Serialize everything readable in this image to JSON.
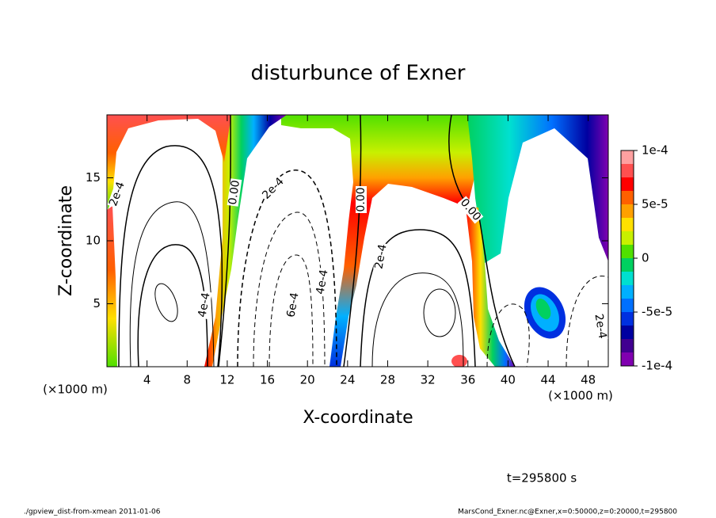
{
  "chart_data": {
    "type": "contour",
    "title": "disturbunce of Exner",
    "x_label": "X-coordinate",
    "y_label": "Z-coordinate",
    "x_unit": "(×1000 m)",
    "y_unit": "(×1000 m)",
    "xlim": [
      0,
      50
    ],
    "xticks": [
      4,
      8,
      12,
      16,
      20,
      24,
      28,
      32,
      36,
      40,
      44,
      48
    ],
    "ylim": [
      0,
      20
    ],
    "yticks": [
      5,
      10,
      15
    ],
    "colorbar": {
      "lim": [
        -0.0001,
        0.0001
      ],
      "ticks": [
        {
          "value": 0.0001,
          "label": "1e-4"
        },
        {
          "value": 5e-05,
          "label": "5e-5"
        },
        0,
        {
          "value": -5e-05,
          "label": "-5e-5"
        },
        {
          "value": -0.0001,
          "label": "-1e-4"
        }
      ],
      "colors": [
        "#ffa0a0",
        "#ff5050",
        "#ff0000",
        "#ff6000",
        "#ffa000",
        "#ffe000",
        "#c8f000",
        "#50e000",
        "#00d060",
        "#00e0d0",
        "#00b0ff",
        "#0070ff",
        "#0030e0",
        "#0000a0",
        "#400090",
        "#8000b0"
      ]
    },
    "contour_labels": [
      "2e-4",
      "0.00",
      "2e-4",
      "0.00",
      "2e-4",
      "0.00",
      "4e-4",
      "6e-4",
      "4e-4",
      "2e-4"
    ],
    "time_note": "t=295800 s",
    "footer_left": "./gpview_dist-from-xmean   2011-01-06",
    "footer_right": "MarsCond_Exner.nc@Exner,x=0:50000,z=0:20000,t=295800"
  }
}
